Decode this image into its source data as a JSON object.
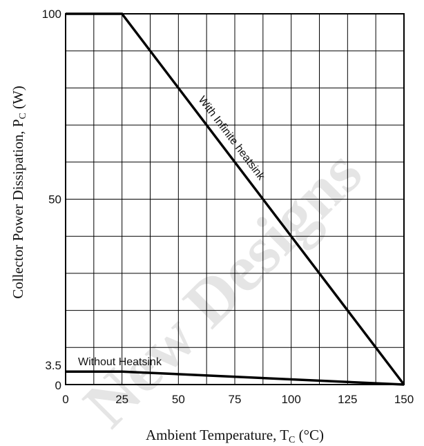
{
  "chart_data": {
    "type": "line",
    "title": "",
    "xlabel": {
      "main": "Ambient Temperature, T",
      "sub": "C",
      "unit": " (°C)"
    },
    "ylabel": {
      "main": "Collector Power Dissipation, P",
      "sub": "C",
      "unit": " (W)"
    },
    "xlim": [
      0,
      150
    ],
    "ylim": [
      0,
      100
    ],
    "x_ticks": [
      0,
      25,
      50,
      75,
      100,
      125,
      150
    ],
    "x_tick_labels": [
      "0",
      "25",
      "50",
      "75",
      "100",
      "125",
      "150"
    ],
    "y_ticks": [
      0,
      3.5,
      50,
      100
    ],
    "y_tick_labels": [
      "0",
      "3.5",
      "50",
      "100"
    ],
    "grid": {
      "x_step": 12.5,
      "y_step": 10
    },
    "series": [
      {
        "name": "With Infinite heatsink",
        "x": [
          0,
          25,
          150
        ],
        "y": [
          100,
          100,
          0
        ]
      },
      {
        "name": "Without Heatsink",
        "x": [
          0,
          25,
          150
        ],
        "y": [
          3.5,
          3.5,
          0
        ]
      }
    ],
    "watermark": "New Designs"
  }
}
